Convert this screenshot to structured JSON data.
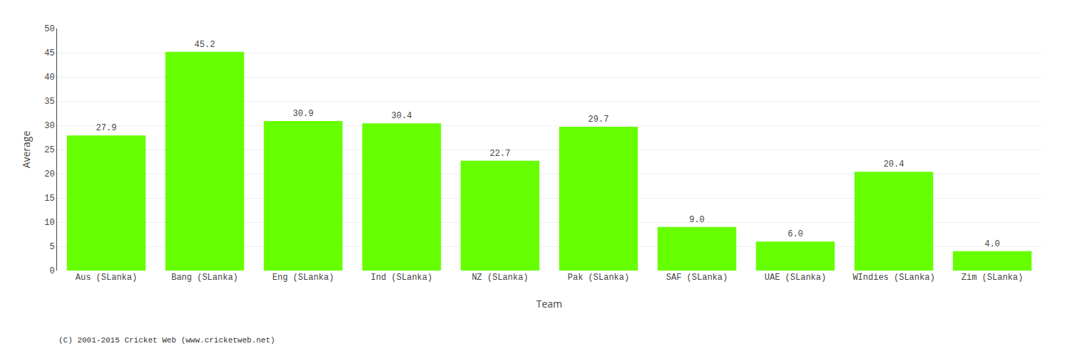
{
  "chart_data": {
    "type": "bar",
    "categories": [
      "Aus (SLanka)",
      "Bang (SLanka)",
      "Eng (SLanka)",
      "Ind (SLanka)",
      "NZ (SLanka)",
      "Pak (SLanka)",
      "SAF (SLanka)",
      "UAE (SLanka)",
      "WIndies (SLanka)",
      "Zim (SLanka)"
    ],
    "values": [
      27.9,
      45.2,
      30.9,
      30.4,
      22.7,
      29.7,
      9.0,
      6.0,
      20.4,
      4.0
    ],
    "value_labels": [
      "27.9",
      "45.2",
      "30.9",
      "30.4",
      "22.7",
      "29.7",
      "9.0",
      "6.0",
      "20.4",
      "4.0"
    ],
    "color": "#66ff00",
    "x_label": "Team",
    "y_label": "Average",
    "ylim": [
      0,
      50
    ],
    "yticks": [
      0,
      5,
      10,
      15,
      20,
      25,
      30,
      35,
      40,
      45,
      50
    ],
    "grid": true,
    "data_labels": true,
    "annotations": [
      "(C) 2001-2015 Cricket Web (www.cricketweb.net)"
    ]
  }
}
